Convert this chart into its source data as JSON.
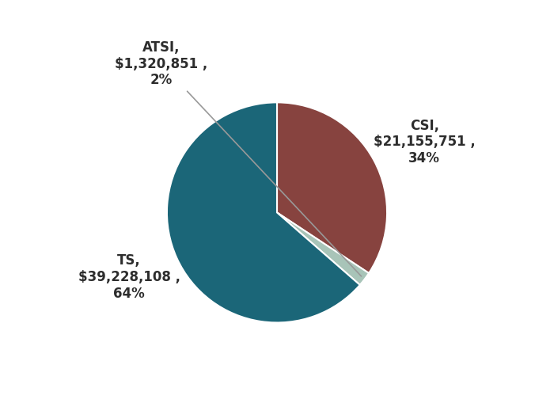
{
  "labels": [
    "CSI",
    "ATSI",
    "TS"
  ],
  "values": [
    21155751,
    1320851,
    39228108
  ],
  "colors": [
    "#87433F",
    "#A8C4B8",
    "#1B6678"
  ],
  "startangle": 90,
  "counterclock": false,
  "background_color": "#ffffff",
  "label_fontsize": 12,
  "label_color": "#2d2d2d",
  "label_fontweight": "bold",
  "csi_label": "CSI,\n$21,155,751 ,\n34%",
  "atsi_label": "ATSI,\n$1,320,851 ,\n2%",
  "ts_label": "TS,\n$39,228,108 ,\n64%",
  "line_color": "#999999",
  "edge_color": "white",
  "edge_linewidth": 1.5
}
